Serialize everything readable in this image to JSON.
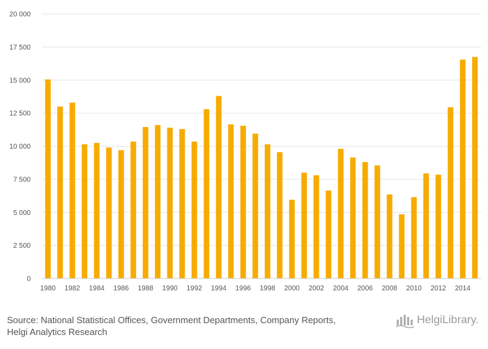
{
  "chart_data": {
    "type": "bar",
    "title": "",
    "xlabel": "",
    "ylabel": "",
    "ylim": [
      0,
      20000
    ],
    "yticks": [
      0,
      2500,
      5000,
      7500,
      10000,
      12500,
      15000,
      17500,
      20000
    ],
    "ytick_labels": [
      "0",
      "2 500",
      "5 000",
      "7 500",
      "10 000",
      "12 500",
      "15 000",
      "17 500",
      "20 000"
    ],
    "categories": [
      "1980",
      "1981",
      "1982",
      "1983",
      "1984",
      "1985",
      "1986",
      "1987",
      "1988",
      "1989",
      "1990",
      "1991",
      "1992",
      "1993",
      "1994",
      "1995",
      "1996",
      "1997",
      "1998",
      "1999",
      "2000",
      "2001",
      "2002",
      "2003",
      "2004",
      "2005",
      "2006",
      "2007",
      "2008",
      "2009",
      "2010",
      "2011",
      "2012",
      "2013",
      "2014",
      "2015"
    ],
    "xtick_labels": [
      "1980",
      "1982",
      "1984",
      "1986",
      "1988",
      "1990",
      "1992",
      "1994",
      "1996",
      "1998",
      "2000",
      "2002",
      "2004",
      "2006",
      "2008",
      "2010",
      "2012",
      "2014"
    ],
    "values": [
      15050,
      13000,
      13300,
      10150,
      10250,
      9900,
      9700,
      10350,
      11450,
      11600,
      11400,
      11300,
      10350,
      12800,
      13800,
      11650,
      11550,
      10950,
      10150,
      9550,
      5950,
      8000,
      7800,
      6650,
      9800,
      9150,
      8800,
      8550,
      6350,
      4850,
      6150,
      7950,
      7850,
      12950,
      16550,
      16750
    ],
    "bar_color": "#f7ab00",
    "grid": true
  },
  "source": {
    "line1": "Source: National Statistical Offices, Government Departments, Company Reports,",
    "line2": "Helgi Analytics Research"
  },
  "brand": {
    "name": "HelgiLibrary.",
    "color": "#9a9a9a",
    "icon": "building-icon"
  }
}
